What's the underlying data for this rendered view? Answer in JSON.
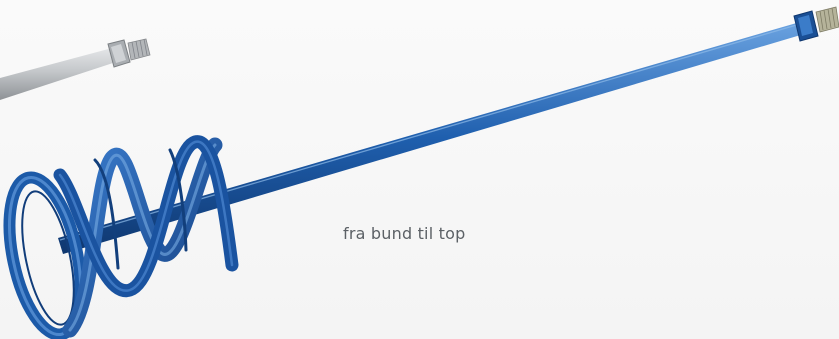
{
  "caption": "fra bund til top",
  "colors": {
    "background": "#f7f7f7",
    "paddle_blue": "#1f5fae",
    "paddle_blue_dark": "#123f7c",
    "paddle_blue_light": "#5b95d8",
    "grey_rod": "#b9bcbf",
    "caption_text": "#5c6166"
  },
  "objects": {
    "grey_rod": "grey-threaded-rod",
    "paddle": "blue-mixing-paddle"
  }
}
